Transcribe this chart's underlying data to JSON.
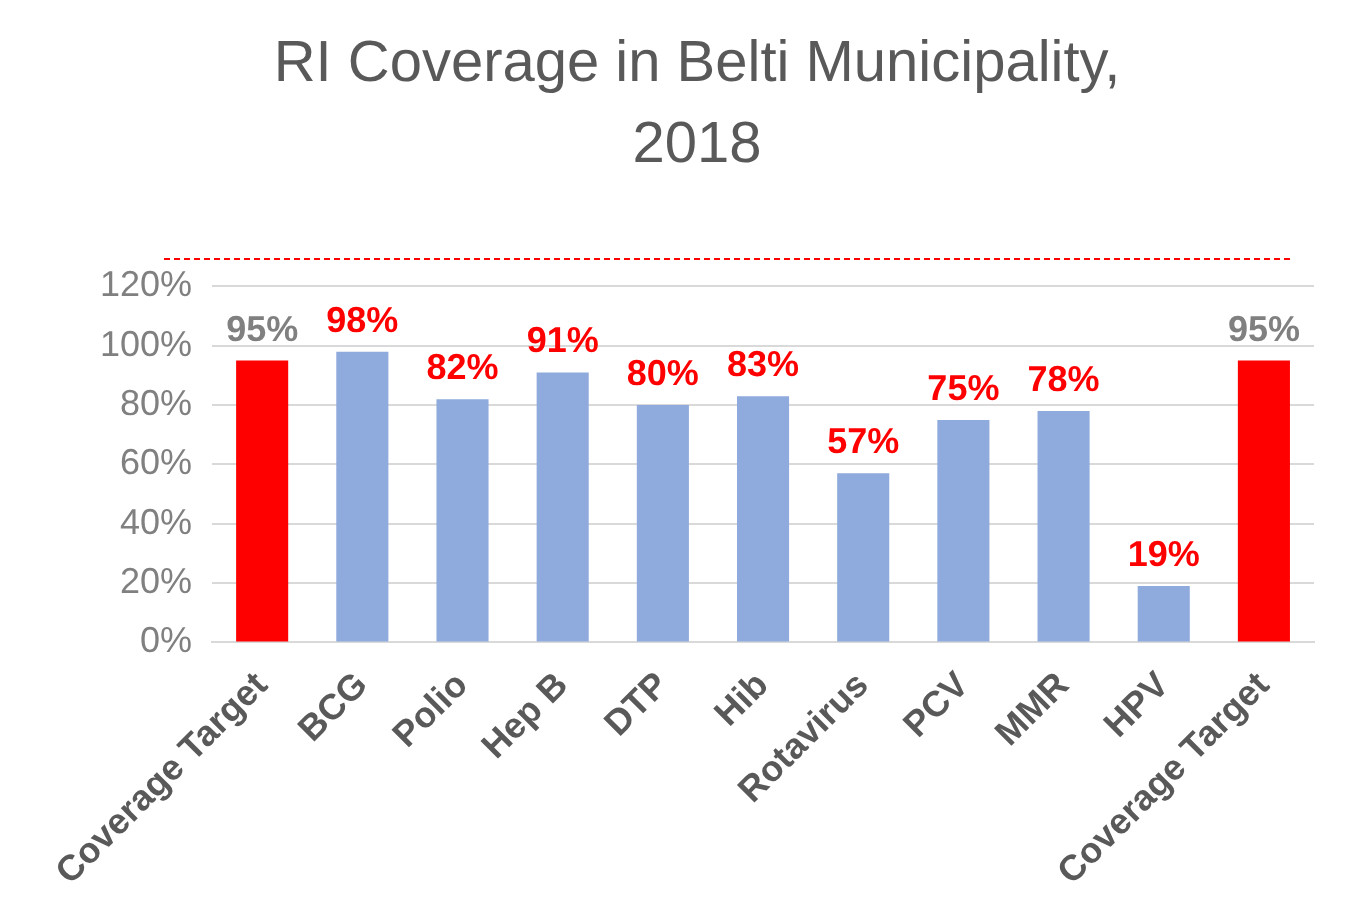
{
  "chart_data": {
    "type": "bar",
    "title": [
      "RI Coverage in Belti Municipality,",
      "2018"
    ],
    "categories": [
      "Coverage Target",
      "BCG",
      "Polio",
      "Hep B",
      "DTP",
      "Hib",
      "Rotavirus",
      "PCV",
      "MMR",
      "HPV",
      "Coverage Target"
    ],
    "values": [
      95,
      98,
      82,
      91,
      80,
      83,
      57,
      75,
      78,
      19,
      95
    ],
    "colors": [
      "#ff0000",
      "#8faadc",
      "#8faadc",
      "#8faadc",
      "#8faadc",
      "#8faadc",
      "#8faadc",
      "#8faadc",
      "#8faadc",
      "#8faadc",
      "#ff0000"
    ],
    "ylim": [
      0,
      120
    ],
    "yticks": [
      {
        "value": 0,
        "label": "0%"
      },
      {
        "value": 20,
        "label": "20%"
      },
      {
        "value": 40,
        "label": "40%"
      },
      {
        "value": 60,
        "label": "60%"
      },
      {
        "value": 80,
        "label": "80%"
      },
      {
        "value": 100,
        "label": "100%"
      },
      {
        "value": 120,
        "label": "120%"
      }
    ],
    "value_labels": [
      "95%",
      "98%",
      "82%",
      "91%",
      "80%",
      "83%",
      "57%",
      "75%",
      "78%",
      "19%",
      "95%"
    ],
    "grid": "y",
    "legend": false
  }
}
